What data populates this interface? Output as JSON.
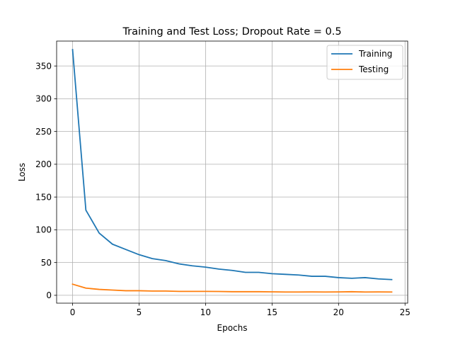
{
  "chart_data": {
    "type": "line",
    "title": "Training and Test Loss; Dropout Rate = 0.5",
    "xlabel": "Epochs",
    "ylabel": "Loss",
    "xlim": [
      -1.2,
      25.2
    ],
    "ylim": [
      -12,
      388
    ],
    "xticks": [
      0,
      5,
      10,
      15,
      20,
      25
    ],
    "yticks": [
      0,
      50,
      100,
      150,
      200,
      250,
      300,
      350
    ],
    "grid": true,
    "legend_position": "top-right",
    "x": [
      0,
      1,
      2,
      3,
      4,
      5,
      6,
      7,
      8,
      9,
      10,
      11,
      12,
      13,
      14,
      15,
      16,
      17,
      18,
      19,
      20,
      21,
      22,
      23,
      24
    ],
    "series": [
      {
        "name": "Training",
        "color": "#1f77b4",
        "values": [
          375,
          130,
          95,
          78,
          70,
          62,
          56,
          53,
          48,
          45,
          43,
          40,
          38,
          35,
          35,
          33,
          32,
          31,
          29,
          29,
          27,
          26,
          27,
          25,
          24
        ]
      },
      {
        "name": "Testing",
        "color": "#ff7f0e",
        "values": [
          17,
          11,
          9,
          8,
          7,
          7,
          6.5,
          6.5,
          6,
          6,
          6,
          5.8,
          5.5,
          5.5,
          5.5,
          5.3,
          5,
          5,
          5.2,
          5,
          5.2,
          5.5,
          5,
          5.2,
          5
        ]
      }
    ]
  }
}
